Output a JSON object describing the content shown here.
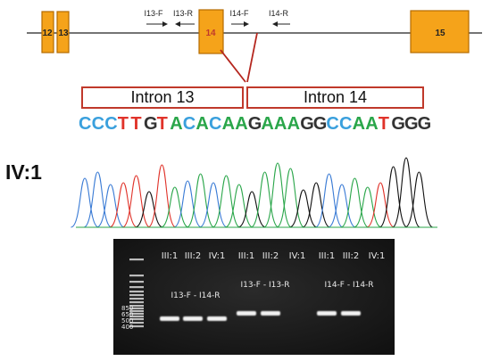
{
  "exons": [
    {
      "label": "12"
    },
    {
      "label": "13"
    },
    {
      "label": "14"
    },
    {
      "label": "15"
    }
  ],
  "primers": {
    "i13f": "I13-F",
    "i13r": "I13-R",
    "i14f": "I14-F",
    "i14r": "I14-R"
  },
  "introns": {
    "left": "Intron 13",
    "right": "Intron 14"
  },
  "sequence": [
    {
      "b": "C",
      "c": "#3aa0dd"
    },
    {
      "b": "C",
      "c": "#3aa0dd"
    },
    {
      "b": "C",
      "c": "#3aa0dd"
    },
    {
      "b": "T",
      "c": "#e0332a"
    },
    {
      "b": "T",
      "c": "#e0332a"
    },
    {
      "b": "G",
      "c": "#333333"
    },
    {
      "b": "T",
      "c": "#e0332a"
    },
    {
      "b": "A",
      "c": "#2aa64a"
    },
    {
      "b": "C",
      "c": "#3aa0dd"
    },
    {
      "b": "A",
      "c": "#2aa64a"
    },
    {
      "b": "C",
      "c": "#3aa0dd"
    },
    {
      "b": "A",
      "c": "#2aa64a"
    },
    {
      "b": "A",
      "c": "#2aa64a"
    },
    {
      "b": "G",
      "c": "#333333"
    },
    {
      "b": "A",
      "c": "#2aa64a"
    },
    {
      "b": "A",
      "c": "#2aa64a"
    },
    {
      "b": "A",
      "c": "#2aa64a"
    },
    {
      "b": "G",
      "c": "#333333"
    },
    {
      "b": "G",
      "c": "#333333"
    },
    {
      "b": "C",
      "c": "#3aa0dd"
    },
    {
      "b": "C",
      "c": "#3aa0dd"
    },
    {
      "b": "A",
      "c": "#2aa64a"
    },
    {
      "b": "A",
      "c": "#2aa64a"
    },
    {
      "b": "T",
      "c": "#e0332a"
    },
    {
      "b": "G",
      "c": "#333333"
    },
    {
      "b": "G",
      "c": "#333333"
    },
    {
      "b": "G",
      "c": "#333333"
    }
  ],
  "sample_label": "IV:1",
  "gel": {
    "lane_labels": [
      "III:1",
      "III:2",
      "IV:1",
      "III:1",
      "III:2",
      "IV:1",
      "III:1",
      "III:2",
      "IV:1"
    ],
    "pair_labels": [
      "I13-F - I14-R",
      "I13-F - I13-R",
      "I14-F - I14-R"
    ],
    "ladder_labels": [
      "850",
      "650",
      "500",
      "400"
    ],
    "bands_present": [
      true,
      true,
      true,
      true,
      true,
      false,
      true,
      true,
      false
    ]
  },
  "colors": {
    "exon_fill": "#f5a31a",
    "exon_stroke": "#b36b00",
    "connector": "#b5261e",
    "gel_bg": "#1b1b1b"
  }
}
